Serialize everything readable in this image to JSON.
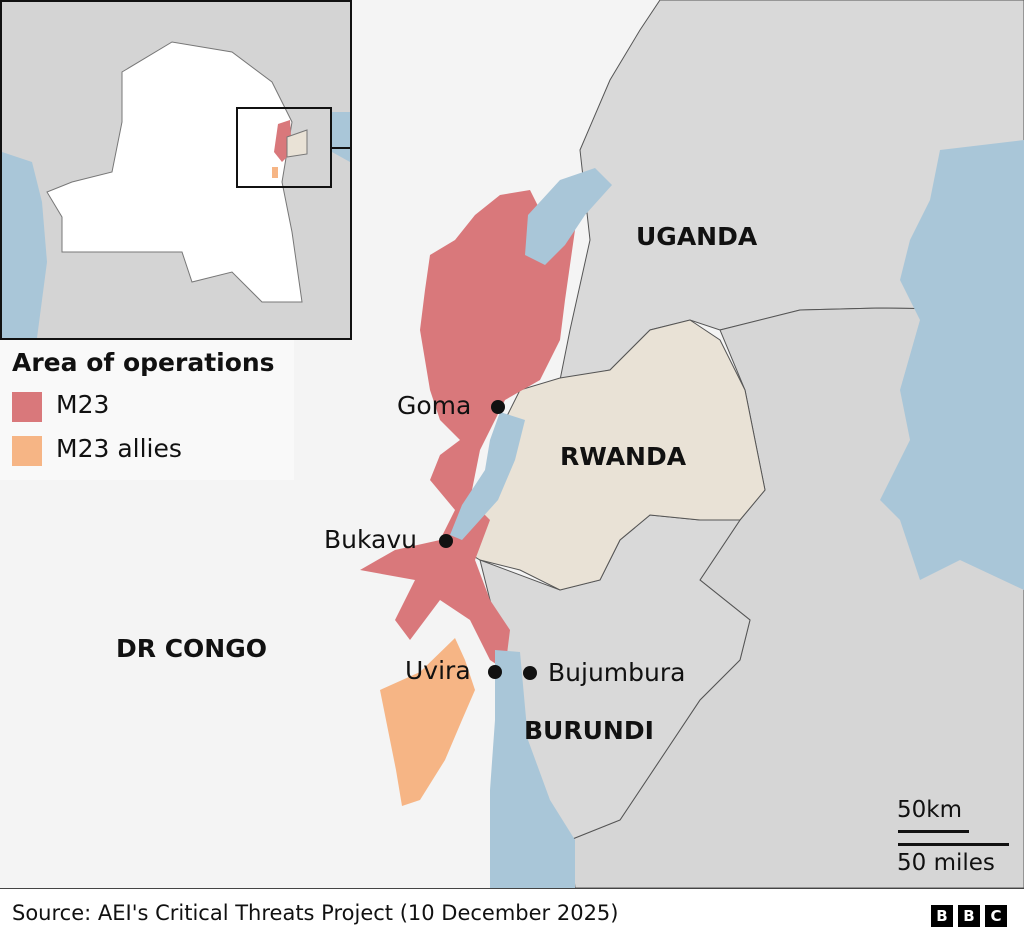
{
  "map": {
    "countries": {
      "uganda": "UGANDA",
      "rwanda": "RWANDA",
      "burundi": "BURUNDI",
      "drc": "DR CONGO"
    },
    "cities": [
      "Goma",
      "Bukavu",
      "Uvira",
      "Bujumbura"
    ],
    "scale": {
      "km": "50km",
      "miles": "50 miles"
    }
  },
  "legend": {
    "title": "Area of operations",
    "items": [
      {
        "label": "M23",
        "color": "#d9787b"
      },
      {
        "label": "M23 allies",
        "color": "#f6b585"
      }
    ]
  },
  "colors": {
    "water": "#a9c6d8",
    "land_other": "#d9d9d9",
    "drc": "#f4f4f4",
    "rwanda": "#e9e2d6"
  },
  "footer": {
    "source": "Source: AEI's Critical Threats Project (10 December 2025)",
    "logo": "BBC"
  }
}
